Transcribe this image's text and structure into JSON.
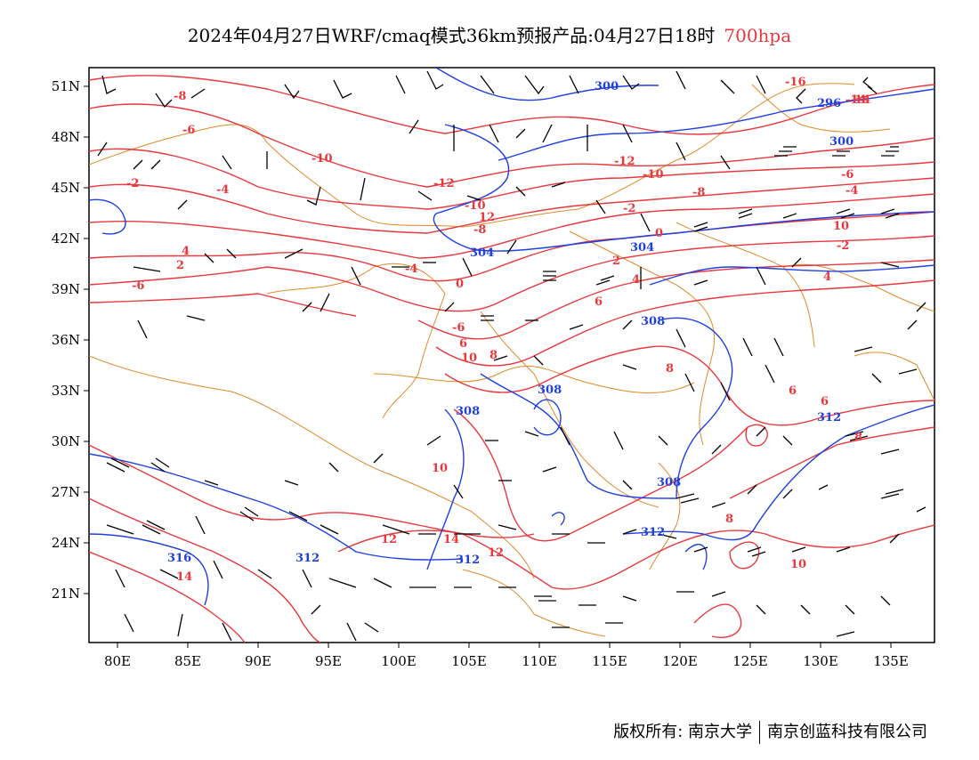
{
  "header": {
    "title": "2024年04月27日WRF/cmaq模式36km预报产品:04月27日18时",
    "level": "700hpa"
  },
  "map": {
    "lat_ticks": [
      "51N",
      "48N",
      "45N",
      "42N",
      "39N",
      "36N",
      "33N",
      "30N",
      "27N",
      "24N",
      "21N"
    ],
    "lon_ticks": [
      "80E",
      "85E",
      "90E",
      "95E",
      "100E",
      "105E",
      "110E",
      "115E",
      "120E",
      "125E",
      "130E",
      "135E"
    ],
    "temperature_labels": [
      "-8",
      "-6",
      "-10",
      "-2",
      "-4",
      "-12",
      "-16",
      "-14",
      "-12",
      "-10",
      "-8",
      "-6",
      "-4",
      "-2",
      "0",
      "2",
      "4",
      "6",
      "8",
      "10",
      "12",
      "14",
      "-10",
      "-8",
      "-6",
      "-4",
      "-2",
      "0",
      "2",
      "4",
      "6",
      "8",
      "10",
      "12",
      "14",
      "-6",
      "4",
      "6",
      "8",
      "10",
      "12",
      "14",
      "6",
      "8",
      "10"
    ],
    "height_labels": [
      "300",
      "296",
      "300",
      "304",
      "304",
      "308",
      "308",
      "308",
      "308",
      "312",
      "312",
      "312",
      "312",
      "316"
    ],
    "colors": {
      "temperature": "#e8383d",
      "height": "#1f3fe0",
      "boundary": "#e08a2a",
      "wind": "#000000"
    }
  },
  "footer": {
    "copyright_left": "版权所有: 南京大学",
    "copyright_right": "南京创蓝科技有限公司"
  }
}
